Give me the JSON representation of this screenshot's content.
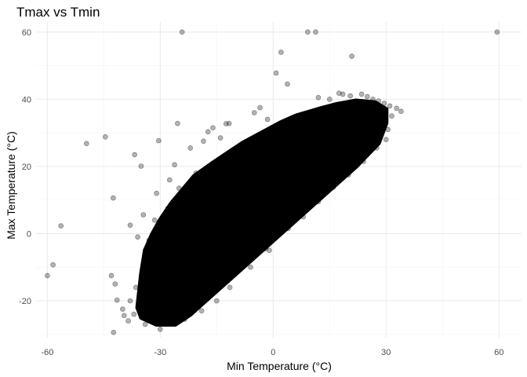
{
  "chart_data": {
    "type": "scatter",
    "title": "Tmax vs Tmin",
    "xlabel": "Min Temperature (°C)",
    "ylabel": "Max Temperature (°C)",
    "xlim": [
      -63,
      66
    ],
    "ylim": [
      -31,
      63
    ],
    "xticks": [
      -60,
      -30,
      0,
      30,
      60
    ],
    "yticks": [
      -20,
      0,
      20,
      40,
      60
    ],
    "grid": true,
    "legend": "none",
    "colors": {
      "point": "#000000",
      "point_opacity": 0.3,
      "grid": "#ebebeb",
      "minor_grid": "#f3f3f3",
      "tick_text": "#4d4d4d"
    },
    "dense_band": {
      "note_x_range": [
        -35,
        30
      ],
      "polygon": [
        [
          -36,
          -22
        ],
        [
          -35,
          -25
        ],
        [
          -31,
          -27
        ],
        [
          -26,
          -27
        ],
        [
          -22,
          -24
        ],
        [
          -15,
          -17
        ],
        [
          -8,
          -10
        ],
        [
          0,
          -2
        ],
        [
          8,
          6
        ],
        [
          15,
          13
        ],
        [
          22,
          20
        ],
        [
          28,
          27
        ],
        [
          30,
          33
        ],
        [
          30,
          37
        ],
        [
          27,
          39
        ],
        [
          22,
          39.5
        ],
        [
          17,
          38.5
        ],
        [
          12,
          37
        ],
        [
          6,
          35
        ],
        [
          2,
          33
        ],
        [
          -3,
          30
        ],
        [
          -8,
          27
        ],
        [
          -12,
          24
        ],
        [
          -16,
          21
        ],
        [
          -21,
          17
        ],
        [
          -24,
          13
        ],
        [
          -27,
          9
        ],
        [
          -30,
          4
        ],
        [
          -32,
          0
        ],
        [
          -34,
          -5
        ],
        [
          -35,
          -12
        ]
      ]
    },
    "points": [
      [
        -60,
        -12.5
      ],
      [
        -58.5,
        -9.3
      ],
      [
        -56.4,
        2.3
      ],
      [
        -49.6,
        26.8
      ],
      [
        -44.6,
        28.8
      ],
      [
        -42.5,
        10.6
      ],
      [
        -43,
        -12.5
      ],
      [
        -42,
        -15
      ],
      [
        -41.5,
        -19.8
      ],
      [
        -40,
        -22.5
      ],
      [
        -39.6,
        -24.4
      ],
      [
        -42.4,
        -29.4
      ],
      [
        -38.5,
        -26
      ],
      [
        -37,
        -24
      ],
      [
        -30.4,
        27.7
      ],
      [
        -35.1,
        20.1
      ],
      [
        -36.8,
        23.5
      ],
      [
        -26.2,
        20.5
      ],
      [
        -25,
        13.5
      ],
      [
        -24.2,
        60
      ],
      [
        -25.4,
        32.8
      ],
      [
        -21,
        15
      ],
      [
        -22,
        25.5
      ],
      [
        -18.5,
        27.5
      ],
      [
        -12.5,
        32.7
      ],
      [
        -11.7,
        32.8
      ],
      [
        -16,
        31.5
      ],
      [
        -14,
        28.5
      ],
      [
        -17.3,
        30.3
      ],
      [
        -20.5,
        18
      ],
      [
        -22.4,
        10
      ],
      [
        -33,
        -2
      ],
      [
        -31.5,
        4
      ],
      [
        -28,
        7.5
      ],
      [
        -26.5,
        2.5
      ],
      [
        -38,
        2.5
      ],
      [
        -36,
        -1
      ],
      [
        -34.5,
        5.6
      ],
      [
        -31,
        12
      ],
      [
        -27.5,
        16
      ],
      [
        -36.5,
        -16
      ],
      [
        -38,
        -20
      ],
      [
        -34,
        -27
      ],
      [
        -30,
        -28.5
      ],
      [
        -27,
        -26.5
      ],
      [
        -23.5,
        -25.5
      ],
      [
        -19,
        -23
      ],
      [
        -15,
        -20
      ],
      [
        -11.5,
        -16
      ],
      [
        -6,
        -10
      ],
      [
        -1,
        -5
      ],
      [
        0.8,
        47.8
      ],
      [
        2.1,
        54
      ],
      [
        3.8,
        44.5
      ],
      [
        -3.5,
        37.5
      ],
      [
        -5,
        36
      ],
      [
        -1.5,
        34
      ],
      [
        9.2,
        60
      ],
      [
        11.3,
        60
      ],
      [
        20.9,
        52.8
      ],
      [
        59.5,
        60
      ],
      [
        12,
        40.5
      ],
      [
        15,
        40
      ],
      [
        17.5,
        41.8
      ],
      [
        18.5,
        41.5
      ],
      [
        20.5,
        41
      ],
      [
        23.5,
        41.5
      ],
      [
        25,
        40.8
      ],
      [
        26.5,
        40
      ],
      [
        28,
        39.5
      ],
      [
        29.5,
        38.8
      ],
      [
        31,
        38
      ],
      [
        32.8,
        37.3
      ],
      [
        34,
        36.4
      ],
      [
        31.5,
        35
      ],
      [
        30.5,
        31
      ],
      [
        30,
        28
      ],
      [
        27.5,
        25.5
      ],
      [
        24,
        21.5
      ],
      [
        20,
        17.5
      ],
      [
        16,
        13.8
      ],
      [
        12,
        9.5
      ],
      [
        8,
        5
      ],
      [
        4,
        1.5
      ],
      [
        -2,
        -4.5
      ]
    ]
  }
}
